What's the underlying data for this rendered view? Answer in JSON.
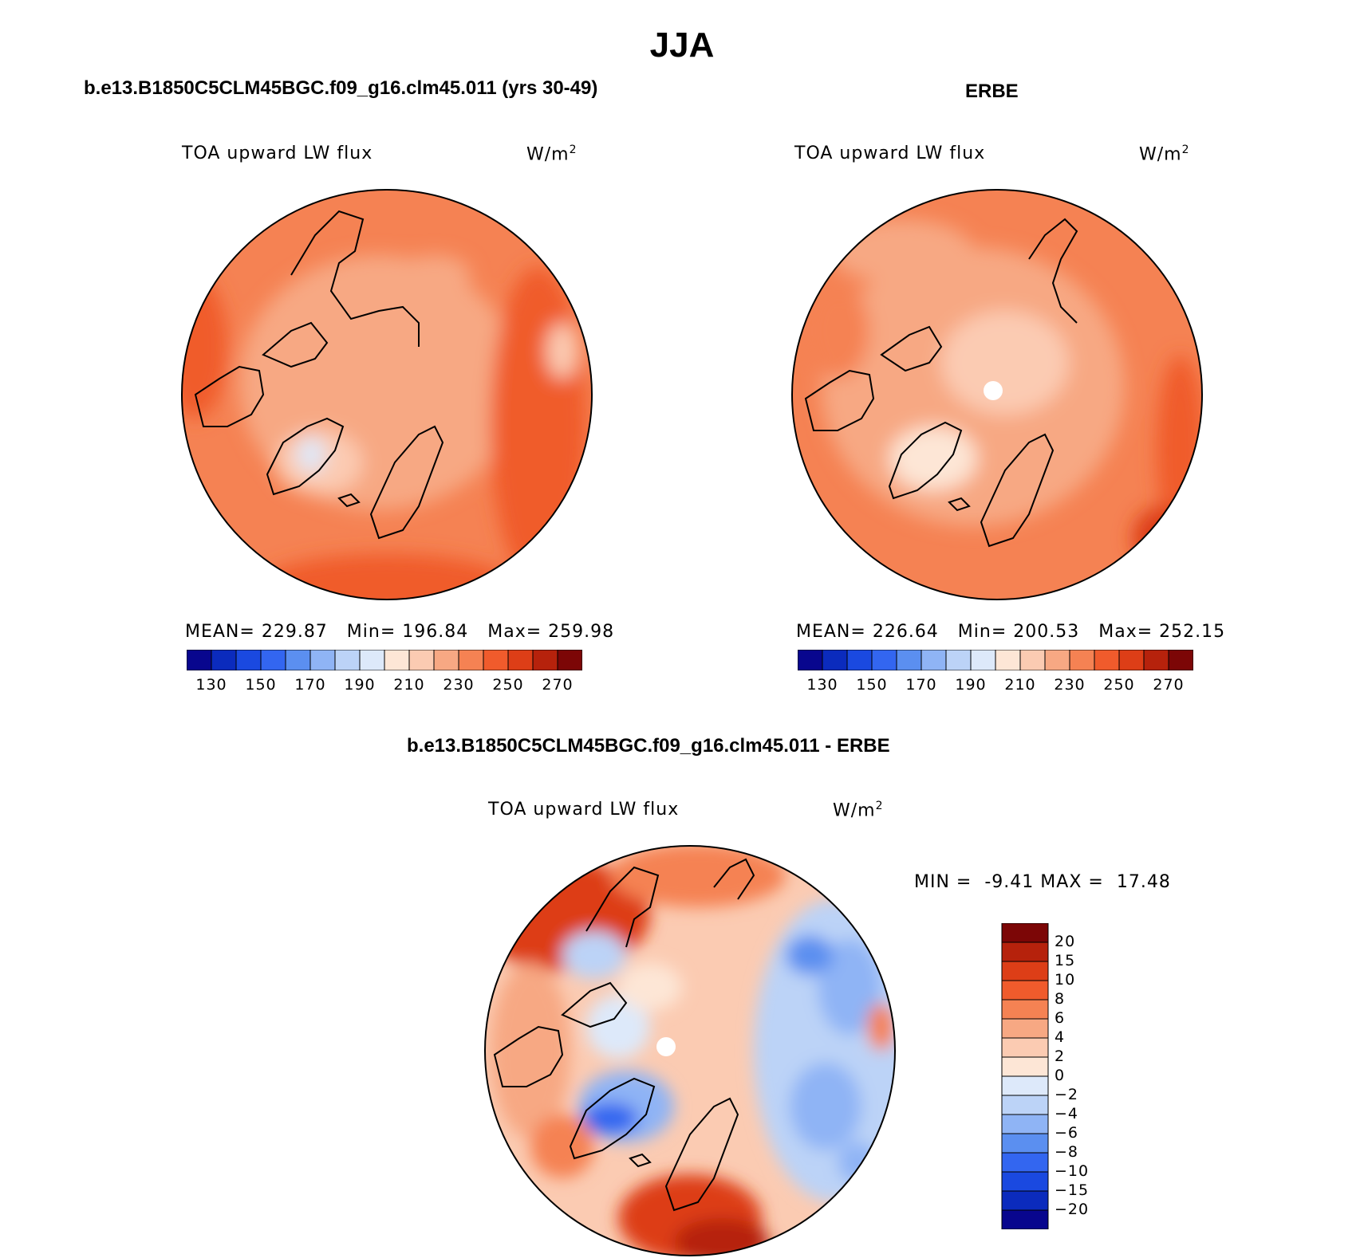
{
  "title": "JJA",
  "panels": [
    {
      "title": "b.e13.B1850C5CLM45BGC.f09_g16.clm45.011 (yrs 30-49)",
      "variable": "TOA upward LW flux",
      "units": "W/m",
      "units_exp": "2",
      "stats": {
        "mean_label": "MEAN=",
        "mean": "229.87",
        "min_label": "Min=",
        "min": "196.84",
        "max_label": "Max=",
        "max": "259.98"
      }
    },
    {
      "title": "ERBE",
      "variable": "TOA upward LW flux",
      "units": "W/m",
      "units_exp": "2",
      "stats": {
        "mean_label": "MEAN=",
        "mean": "226.64",
        "min_label": "Min=",
        "min": "200.53",
        "max_label": "Max=",
        "max": "252.15"
      }
    },
    {
      "title": "b.e13.B1850C5CLM45BGC.f09_g16.clm45.011 - ERBE",
      "variable": "TOA upward LW flux",
      "units": "W/m",
      "units_exp": "2",
      "minmax": {
        "min_label": "MIN =",
        "min": "-9.41",
        "max_label": "MAX =",
        "max": "17.48"
      }
    }
  ],
  "abs_colorbar": {
    "colors": [
      "#08068e",
      "#0b2bbd",
      "#1a49e0",
      "#3366f0",
      "#5b8ff0",
      "#8fb4f5",
      "#bcd3f7",
      "#dde9fa",
      "#fde6d6",
      "#fbcbb2",
      "#f7a883",
      "#f58253",
      "#f05b2c",
      "#dd3e17",
      "#b6220c",
      "#7c0606"
    ],
    "ticks": [
      "130",
      "150",
      "170",
      "190",
      "210",
      "230",
      "250",
      "270"
    ]
  },
  "diff_colorbar": {
    "colors": [
      "#08068e",
      "#0b2bbd",
      "#1a49e0",
      "#3366f0",
      "#5b8ff0",
      "#8fb4f5",
      "#bcd3f7",
      "#dde9fa",
      "#fde6d6",
      "#fbcbb2",
      "#f7a883",
      "#f58253",
      "#f05b2c",
      "#dd3e17",
      "#b6220c",
      "#7c0606"
    ],
    "ticks": [
      "20",
      "15",
      "10",
      "8",
      "6",
      "4",
      "2",
      "0",
      "−2",
      "−4",
      "−6",
      "−8",
      "−10",
      "−15",
      "−20"
    ]
  },
  "chart_data": [
    {
      "type": "heatmap",
      "projection": "polar-stereographic-north",
      "title": "b.e13.B1850C5CLM45BGC.f09_g16.clm45.011 (yrs 30-49)",
      "variable": "TOA upward LW flux",
      "units": "W/m2",
      "mean": 229.87,
      "min": 196.84,
      "max": 259.98,
      "levels": [
        130,
        140,
        150,
        160,
        170,
        180,
        190,
        200,
        210,
        220,
        230,
        240,
        250,
        260,
        270
      ]
    },
    {
      "type": "heatmap",
      "projection": "polar-stereographic-north",
      "title": "ERBE",
      "variable": "TOA upward LW flux",
      "units": "W/m2",
      "mean": 226.64,
      "min": 200.53,
      "max": 252.15,
      "levels": [
        130,
        140,
        150,
        160,
        170,
        180,
        190,
        200,
        210,
        220,
        230,
        240,
        250,
        260,
        270
      ]
    },
    {
      "type": "heatmap",
      "projection": "polar-stereographic-north",
      "title": "b.e13.B1850C5CLM45BGC.f09_g16.clm45.011 - ERBE",
      "variable": "TOA upward LW flux",
      "units": "W/m2",
      "min": -9.41,
      "max": 17.48,
      "levels": [
        -20,
        -15,
        -10,
        -8,
        -6,
        -4,
        -2,
        0,
        2,
        4,
        6,
        8,
        10,
        15,
        20
      ]
    }
  ]
}
